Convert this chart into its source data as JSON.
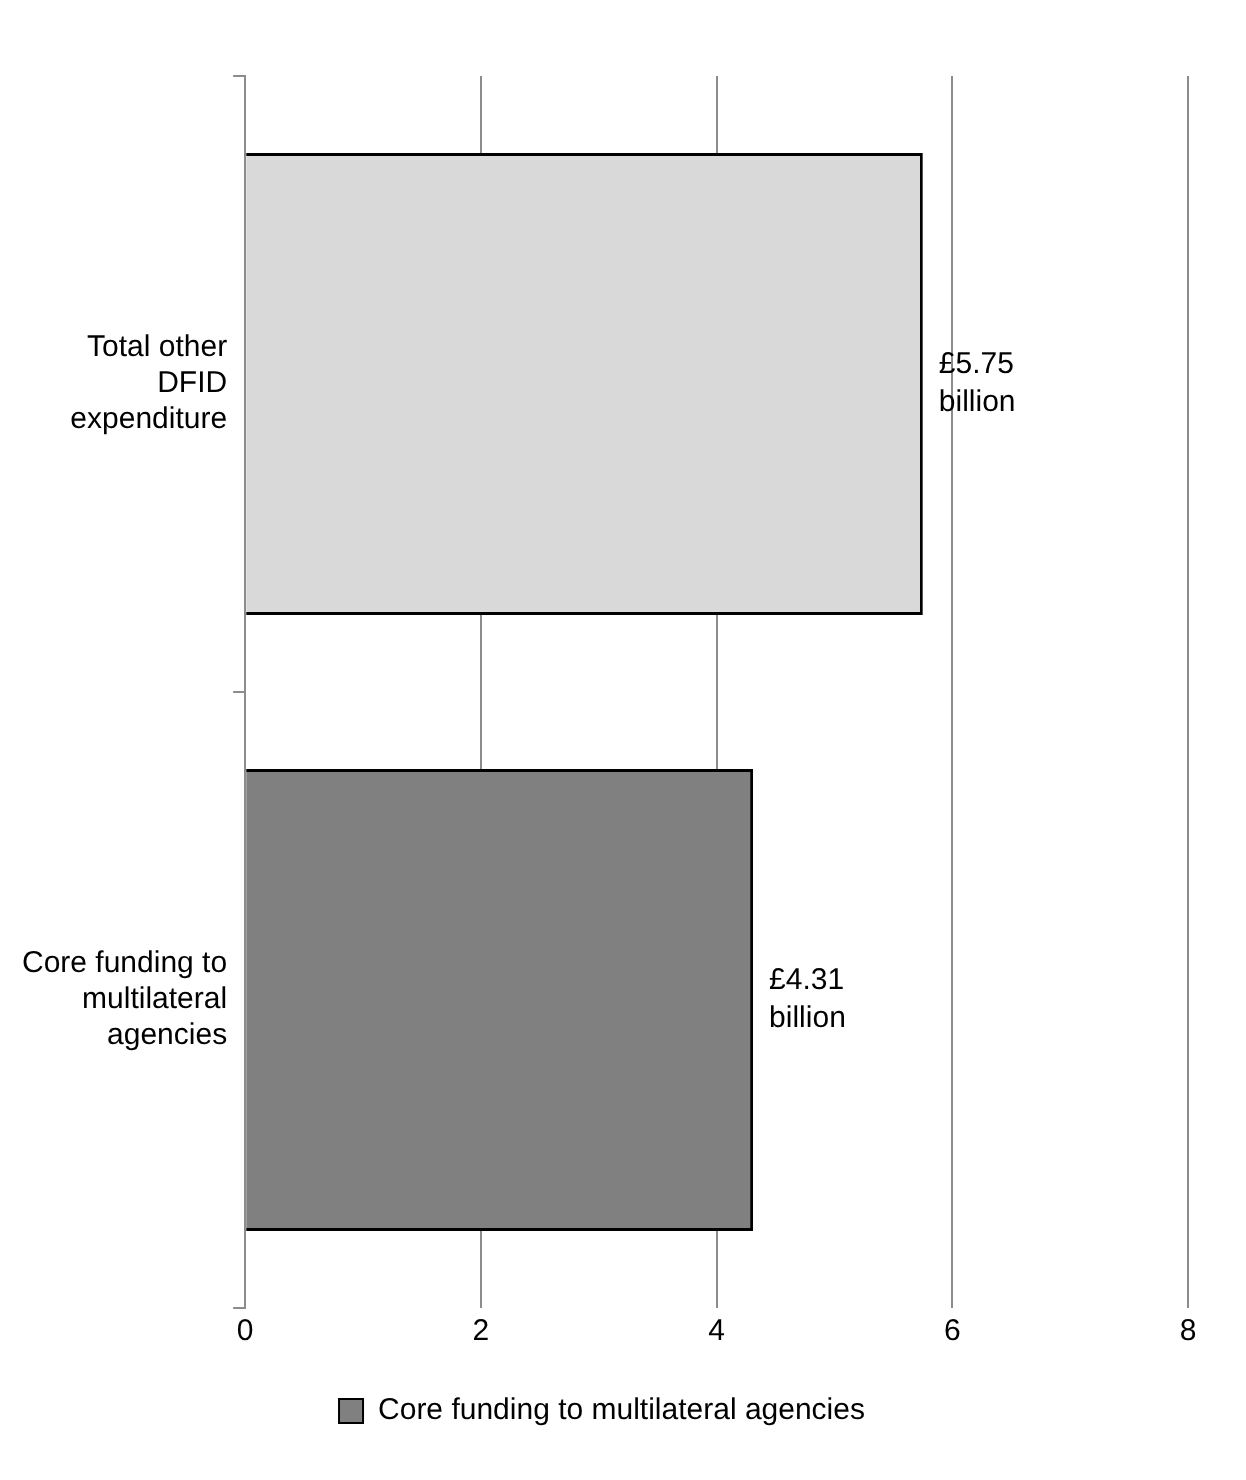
{
  "chart_data": {
    "type": "bar",
    "orientation": "horizontal",
    "categories": [
      "Total other DFID expenditure",
      "Core funding to multilateral agencies"
    ],
    "series": [
      {
        "color": "#d9d9d9",
        "values": [
          5.75,
          null
        ],
        "value_labels": [
          "£5.75 billion",
          null
        ]
      },
      {
        "name": "Core funding to multilateral agencies",
        "color": "#808080",
        "values": [
          null,
          4.31
        ],
        "value_labels": [
          null,
          "£4.31 billion"
        ]
      }
    ],
    "xlim": [
      0,
      8
    ],
    "xticks": [
      0,
      2,
      4,
      6,
      8
    ],
    "grid": "x",
    "legend": "bottom"
  }
}
